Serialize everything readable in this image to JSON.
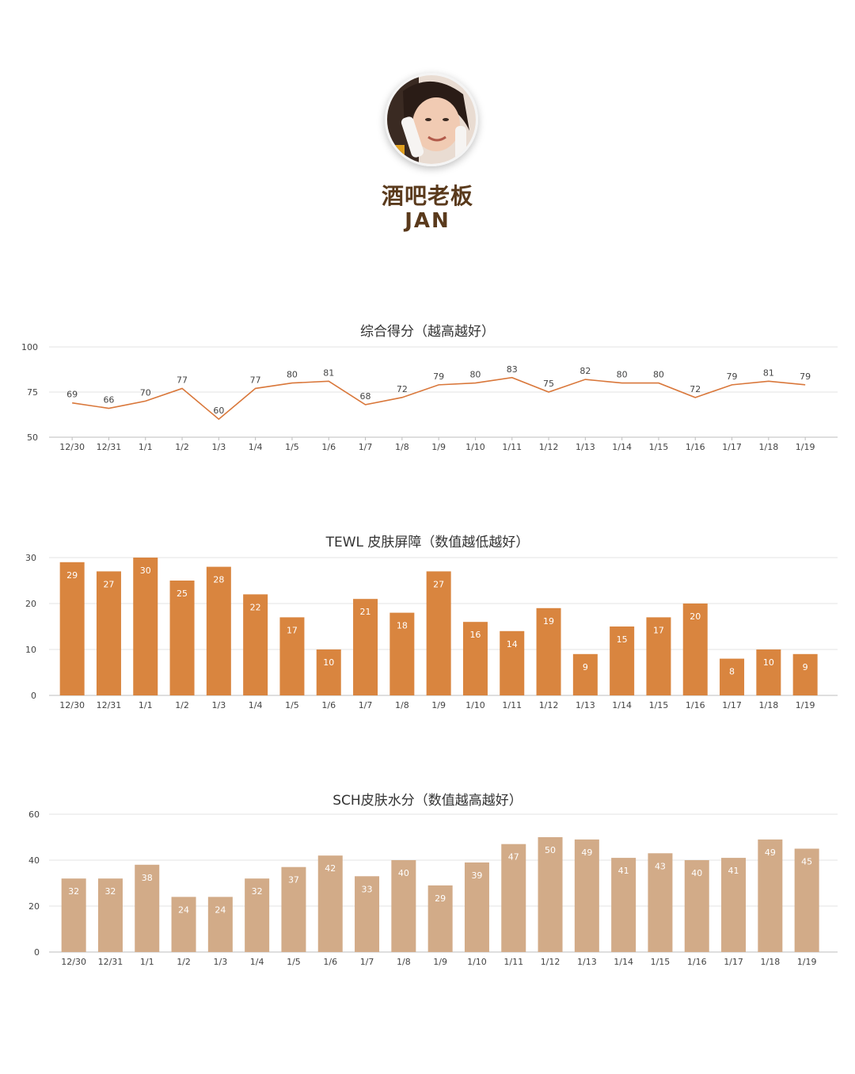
{
  "profile": {
    "name_cn": "酒吧老板",
    "name_en": "JAN",
    "avatar_icon": "woman-portrait-icon"
  },
  "chart_data": [
    {
      "type": "line",
      "title": "综合得分（越高越好）",
      "categories": [
        "12/30",
        "12/31",
        "1/1",
        "1/2",
        "1/3",
        "1/4",
        "1/5",
        "1/6",
        "1/7",
        "1/8",
        "1/9",
        "1/10",
        "1/11",
        "1/12",
        "1/13",
        "1/14",
        "1/15",
        "1/16",
        "1/17",
        "1/18",
        "1/19"
      ],
      "values": [
        69,
        66,
        70,
        77,
        60,
        77,
        80,
        81,
        68,
        72,
        79,
        80,
        83,
        75,
        82,
        80,
        80,
        72,
        79,
        81,
        79
      ],
      "yticks": [
        50,
        75,
        100
      ],
      "ylim": [
        50,
        100
      ],
      "grid": true,
      "color": "#d9773a"
    },
    {
      "type": "bar",
      "title": "TEWL 皮肤屏障（数值越低越好）",
      "categories": [
        "12/30",
        "12/31",
        "1/1",
        "1/2",
        "1/3",
        "1/4",
        "1/5",
        "1/6",
        "1/7",
        "1/8",
        "1/9",
        "1/10",
        "1/11",
        "1/12",
        "1/13",
        "1/14",
        "1/15",
        "1/16",
        "1/17",
        "1/18",
        "1/19"
      ],
      "values": [
        29,
        27,
        30,
        25,
        28,
        22,
        17,
        10,
        21,
        18,
        27,
        16,
        14,
        19,
        9,
        15,
        17,
        20,
        8,
        10,
        9
      ],
      "yticks": [
        0,
        10,
        20,
        30
      ],
      "ylim": [
        0,
        30
      ],
      "grid": true,
      "color": "#d9853f"
    },
    {
      "type": "bar",
      "title": "SCH皮肤水分（数值越高越好）",
      "categories": [
        "12/30",
        "12/31",
        "1/1",
        "1/2",
        "1/3",
        "1/4",
        "1/5",
        "1/6",
        "1/7",
        "1/8",
        "1/9",
        "1/10",
        "1/11",
        "1/12",
        "1/13",
        "1/14",
        "1/15",
        "1/16",
        "1/17",
        "1/18",
        "1/19"
      ],
      "values": [
        32,
        32,
        38,
        24,
        24,
        32,
        37,
        42,
        33,
        40,
        29,
        39,
        47,
        50,
        49,
        41,
        43,
        40,
        41,
        49,
        45
      ],
      "yticks": [
        0,
        20,
        40,
        60
      ],
      "ylim": [
        0,
        60
      ],
      "grid": true,
      "color": "#d2ab88"
    }
  ]
}
